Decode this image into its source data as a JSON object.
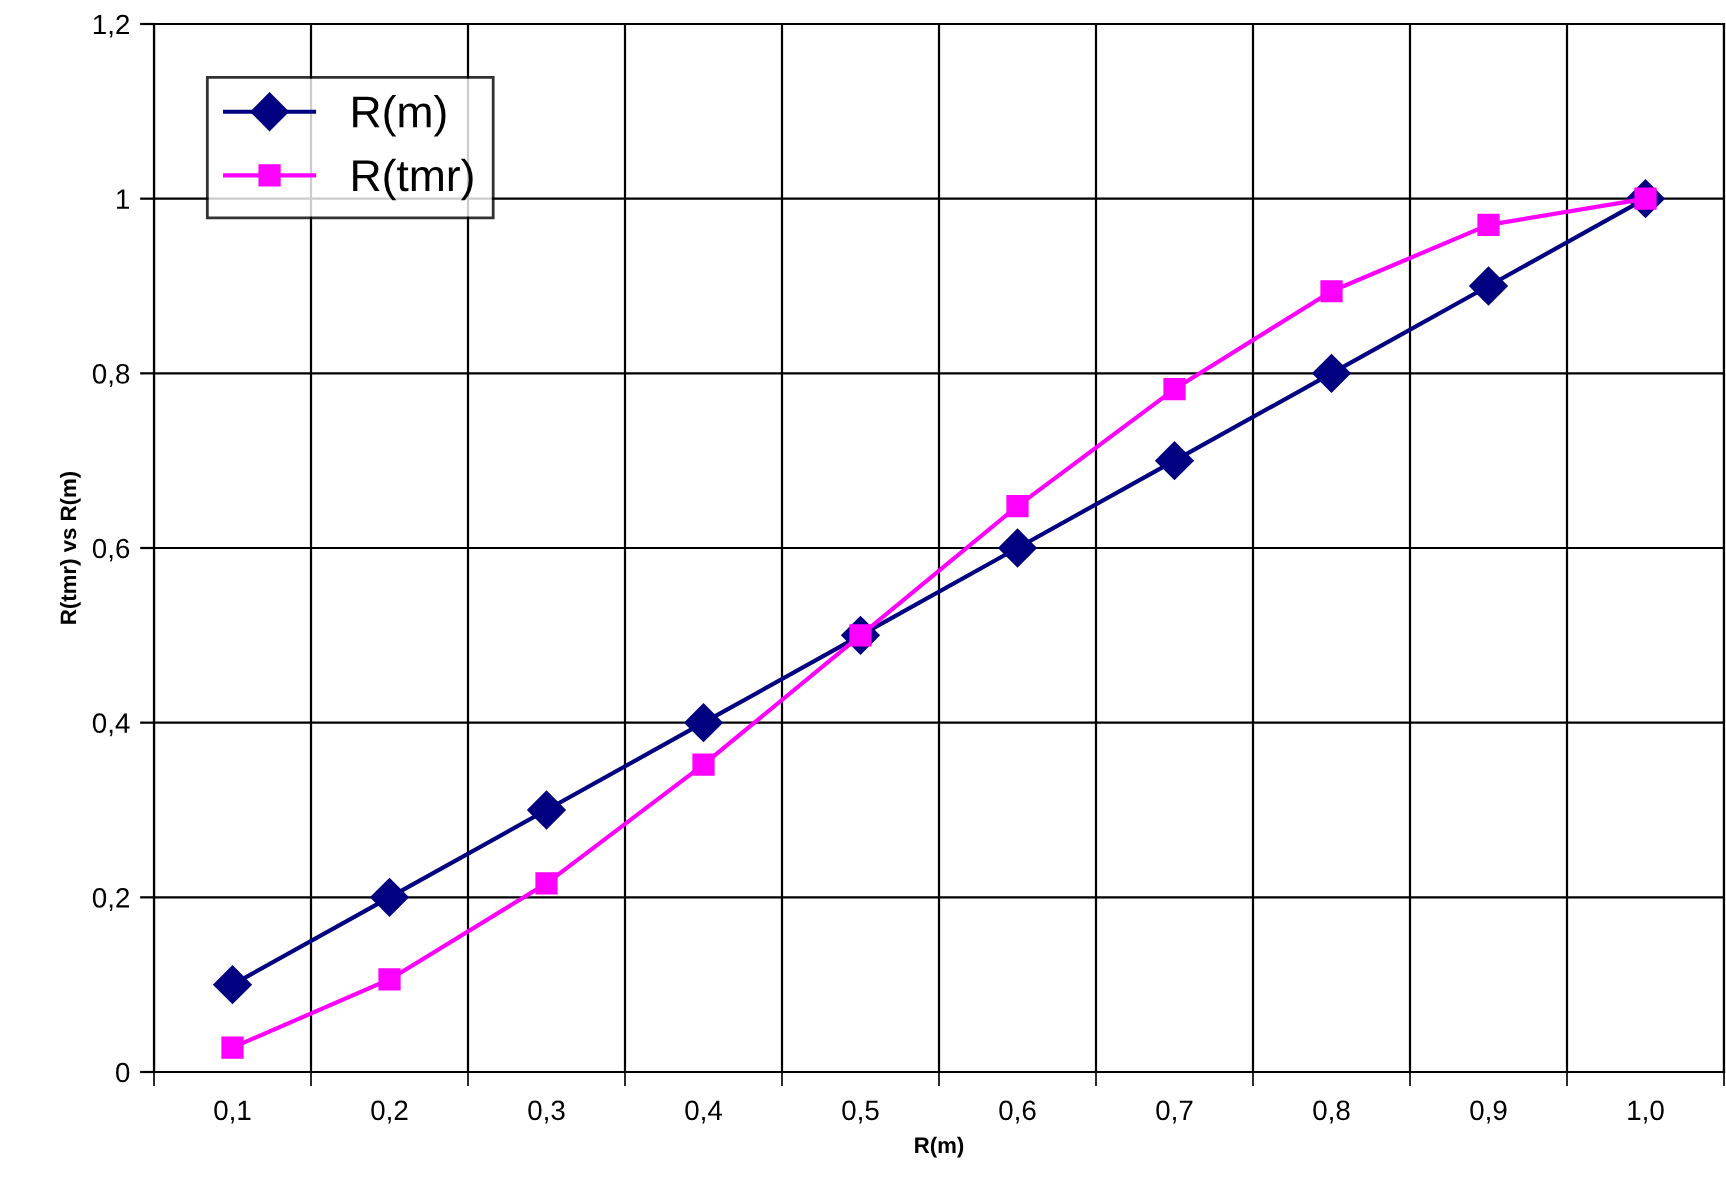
{
  "chart_data": {
    "type": "line",
    "xlabel": "R(m)",
    "ylabel": "R(tmr) vs R(m)",
    "categories": [
      "0,1",
      "0,2",
      "0,3",
      "0,4",
      "0,5",
      "0,6",
      "0,7",
      "0,8",
      "0,9",
      "1,0"
    ],
    "series": [
      {
        "name": "R(m)",
        "color": "#000080",
        "marker": "diamond",
        "values": [
          0.1,
          0.2,
          0.3,
          0.4,
          0.5,
          0.6,
          0.7,
          0.8,
          0.9,
          1.0
        ]
      },
      {
        "name": "R(tmr)",
        "color": "#ff00ff",
        "marker": "square",
        "values": [
          0.028,
          0.106,
          0.216,
          0.352,
          0.5,
          0.648,
          0.782,
          0.894,
          0.97,
          1.0
        ]
      }
    ],
    "ylim": [
      0,
      1.2
    ],
    "yticks": [
      0,
      {
        "value": 0.2,
        "label": "0,2"
      },
      {
        "value": 0.4,
        "label": "0,4"
      },
      {
        "value": 0.6,
        "label": "0,6"
      },
      {
        "value": 0.8,
        "label": "0,8"
      },
      1,
      {
        "value": 1.2,
        "label": "1,2"
      }
    ],
    "grid": true,
    "legend": "top left",
    "line_style": "solid"
  }
}
